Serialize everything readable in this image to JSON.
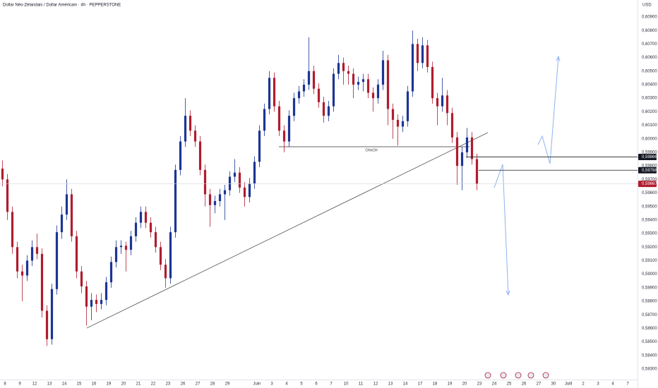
{
  "header": {
    "title": "Dollar Néo-Zélandais / Dollar Américain · 4h · PEPPERSTONE",
    "currency": "USD",
    "annotation": "CHoCH"
  },
  "chart_data": {
    "type": "candlestick",
    "up_color": "#1c3594",
    "down_color": "#b01c2e",
    "grid": false,
    "ylim": [
      0.583,
      0.609
    ],
    "yticks": [
      {
        "value": 0.609,
        "label": "0,60900"
      },
      {
        "value": 0.608,
        "label": "0,60800"
      },
      {
        "value": 0.607,
        "label": "0,60700"
      },
      {
        "value": 0.606,
        "label": "0,60600"
      },
      {
        "value": 0.605,
        "label": "0,60500"
      },
      {
        "value": 0.604,
        "label": "0,60400"
      },
      {
        "value": 0.603,
        "label": "0,60300"
      },
      {
        "value": 0.602,
        "label": "0,60200"
      },
      {
        "value": 0.601,
        "label": "0,60100"
      },
      {
        "value": 0.6,
        "label": "0,60000"
      },
      {
        "value": 0.599,
        "label": "0,59900"
      },
      {
        "value": 0.598,
        "label": "0,59800"
      },
      {
        "value": 0.597,
        "label": "0,59700"
      },
      {
        "value": 0.596,
        "label": "0,59600"
      },
      {
        "value": 0.595,
        "label": "0,59500"
      },
      {
        "value": 0.594,
        "label": "0,59400"
      },
      {
        "value": 0.593,
        "label": "0,59300"
      },
      {
        "value": 0.592,
        "label": "0,59200"
      },
      {
        "value": 0.591,
        "label": "0,59100"
      },
      {
        "value": 0.59,
        "label": "0,59000"
      },
      {
        "value": 0.589,
        "label": "0,58900"
      },
      {
        "value": 0.588,
        "label": "0,58800"
      },
      {
        "value": 0.587,
        "label": "0,58700"
      },
      {
        "value": 0.586,
        "label": "0,58600"
      },
      {
        "value": 0.585,
        "label": "0,58500"
      },
      {
        "value": 0.584,
        "label": "0,58400"
      },
      {
        "value": 0.583,
        "label": "0,58300"
      }
    ],
    "price_labels": [
      {
        "value": 0.59866,
        "label": "0,59866",
        "color": "#131722"
      },
      {
        "value": 0.59768,
        "label": "0,59768",
        "color": "#131722"
      },
      {
        "value": 0.59667,
        "label": "0,59667",
        "color": "#b01c2e"
      }
    ],
    "x_labels": [
      "8",
      "9",
      "12",
      "13",
      "14",
      "15",
      "16",
      "19",
      "20",
      "21",
      "22",
      "23",
      "26",
      "27",
      "28",
      "29",
      null,
      "Juin",
      "3",
      "4",
      "5",
      "6",
      "7",
      "10",
      "11",
      "12",
      "13",
      "14",
      "17",
      "18",
      "19",
      "20",
      "23",
      "24",
      "25",
      "26",
      "27",
      "30",
      "Juill",
      "2",
      "3",
      "4",
      "7"
    ],
    "ohlc": [
      [
        0.5978,
        0.5984,
        0.5965,
        0.597
      ],
      [
        0.597,
        0.5974,
        0.594,
        0.5946
      ],
      [
        0.5946,
        0.595,
        0.5915,
        0.592
      ],
      [
        0.592,
        0.5924,
        0.5897,
        0.5902
      ],
      [
        0.5902,
        0.5907,
        0.588,
        0.5899
      ],
      [
        0.5899,
        0.5914,
        0.5895,
        0.591
      ],
      [
        0.591,
        0.5925,
        0.5906,
        0.592
      ],
      [
        0.592,
        0.593,
        0.5911,
        0.5915
      ],
      [
        0.5915,
        0.5919,
        0.5868,
        0.5873
      ],
      [
        0.5873,
        0.5877,
        0.5847,
        0.5852
      ],
      [
        0.5852,
        0.5893,
        0.5848,
        0.5889
      ],
      [
        0.5889,
        0.5936,
        0.5885,
        0.5931
      ],
      [
        0.5931,
        0.595,
        0.5926,
        0.5944
      ],
      [
        0.5944,
        0.597,
        0.594,
        0.5959
      ],
      [
        0.5959,
        0.5963,
        0.5924,
        0.5928
      ],
      [
        0.5928,
        0.5932,
        0.5897,
        0.5902
      ],
      [
        0.5902,
        0.5906,
        0.5886,
        0.5891
      ],
      [
        0.5891,
        0.5895,
        0.5862,
        0.5876
      ],
      [
        0.5876,
        0.5886,
        0.5866,
        0.5881
      ],
      [
        0.5881,
        0.5885,
        0.5872,
        0.5878
      ],
      [
        0.5878,
        0.5886,
        0.5874,
        0.5881
      ],
      [
        0.5881,
        0.5898,
        0.5877,
        0.5894
      ],
      [
        0.5894,
        0.5913,
        0.589,
        0.5909
      ],
      [
        0.5909,
        0.5925,
        0.5905,
        0.592
      ],
      [
        0.592,
        0.5925,
        0.5915,
        0.5921
      ],
      [
        0.5921,
        0.5924,
        0.5902,
        0.5918
      ],
      [
        0.5918,
        0.5932,
        0.5914,
        0.5928
      ],
      [
        0.5928,
        0.5942,
        0.5924,
        0.5938
      ],
      [
        0.5938,
        0.595,
        0.5934,
        0.5946
      ],
      [
        0.5946,
        0.595,
        0.5934,
        0.5938
      ],
      [
        0.5938,
        0.5942,
        0.5927,
        0.5931
      ],
      [
        0.5931,
        0.5935,
        0.5916,
        0.592
      ],
      [
        0.592,
        0.5924,
        0.5903,
        0.5907
      ],
      [
        0.5907,
        0.5911,
        0.589,
        0.5897
      ],
      [
        0.5897,
        0.5935,
        0.5893,
        0.5931
      ],
      [
        0.5931,
        0.5981,
        0.5927,
        0.5977
      ],
      [
        0.5977,
        0.6002,
        0.5973,
        0.5998
      ],
      [
        0.5998,
        0.603,
        0.5994,
        0.6017
      ],
      [
        0.6017,
        0.6021,
        0.6002,
        0.6006
      ],
      [
        0.6006,
        0.601,
        0.5994,
        0.5998
      ],
      [
        0.5998,
        0.6002,
        0.5973,
        0.5977
      ],
      [
        0.5977,
        0.5981,
        0.595,
        0.5959
      ],
      [
        0.5959,
        0.5963,
        0.5935,
        0.5951
      ],
      [
        0.5951,
        0.5958,
        0.5945,
        0.5954
      ],
      [
        0.5954,
        0.5963,
        0.595,
        0.5959
      ],
      [
        0.5959,
        0.5966,
        0.594,
        0.5962
      ],
      [
        0.5962,
        0.5976,
        0.5958,
        0.5972
      ],
      [
        0.5972,
        0.5985,
        0.5968,
        0.5975
      ],
      [
        0.5975,
        0.5979,
        0.596,
        0.5964
      ],
      [
        0.5964,
        0.5968,
        0.595,
        0.5957
      ],
      [
        0.5957,
        0.5971,
        0.5953,
        0.5967
      ],
      [
        0.5967,
        0.5987,
        0.5963,
        0.5983
      ],
      [
        0.5983,
        0.601,
        0.5979,
        0.6006
      ],
      [
        0.6006,
        0.6026,
        0.6002,
        0.6022
      ],
      [
        0.6022,
        0.605,
        0.6018,
        0.6045
      ],
      [
        0.6045,
        0.6049,
        0.602,
        0.6024
      ],
      [
        0.6024,
        0.6028,
        0.6002,
        0.6006
      ],
      [
        0.6006,
        0.601,
        0.599,
        0.5998
      ],
      [
        0.5998,
        0.6021,
        0.5994,
        0.6017
      ],
      [
        0.6017,
        0.6034,
        0.6013,
        0.603
      ],
      [
        0.603,
        0.6039,
        0.6026,
        0.6035
      ],
      [
        0.6035,
        0.6044,
        0.6031,
        0.604
      ],
      [
        0.604,
        0.6075,
        0.6036,
        0.605
      ],
      [
        0.605,
        0.6054,
        0.6033,
        0.6037
      ],
      [
        0.6037,
        0.6041,
        0.6023,
        0.6027
      ],
      [
        0.6027,
        0.6031,
        0.6012,
        0.6017
      ],
      [
        0.6017,
        0.6028,
        0.6013,
        0.6024
      ],
      [
        0.6024,
        0.6052,
        0.602,
        0.6048
      ],
      [
        0.6048,
        0.6062,
        0.6044,
        0.6056
      ],
      [
        0.6056,
        0.606,
        0.604,
        0.605
      ],
      [
        0.605,
        0.6054,
        0.604,
        0.6048
      ],
      [
        0.6048,
        0.6052,
        0.603,
        0.604
      ],
      [
        0.604,
        0.6046,
        0.6036,
        0.6042
      ],
      [
        0.6042,
        0.6048,
        0.6035,
        0.6044
      ],
      [
        0.6044,
        0.6048,
        0.603,
        0.6034
      ],
      [
        0.6034,
        0.6038,
        0.602,
        0.603
      ],
      [
        0.603,
        0.6044,
        0.6026,
        0.604
      ],
      [
        0.604,
        0.6065,
        0.6036,
        0.6058
      ],
      [
        0.6058,
        0.6062,
        0.601,
        0.6022
      ],
      [
        0.6022,
        0.6026,
        0.6,
        0.6014
      ],
      [
        0.6014,
        0.6018,
        0.5995,
        0.6009
      ],
      [
        0.6009,
        0.6017,
        0.6005,
        0.6013
      ],
      [
        0.6013,
        0.6039,
        0.6009,
        0.6035
      ],
      [
        0.6035,
        0.608,
        0.6031,
        0.607
      ],
      [
        0.607,
        0.6074,
        0.605,
        0.6056
      ],
      [
        0.6056,
        0.6075,
        0.6052,
        0.6069
      ],
      [
        0.6069,
        0.6073,
        0.6049,
        0.6053
      ],
      [
        0.6053,
        0.6057,
        0.6026,
        0.603
      ],
      [
        0.603,
        0.6034,
        0.601,
        0.6024
      ],
      [
        0.6024,
        0.6045,
        0.602,
        0.6032
      ],
      [
        0.6032,
        0.6036,
        0.601,
        0.6019
      ],
      [
        0.6019,
        0.6023,
        0.5997,
        0.6001
      ],
      [
        0.6001,
        0.6005,
        0.5966,
        0.598
      ],
      [
        0.598,
        0.5994,
        0.5962,
        0.599
      ],
      [
        0.599,
        0.6008,
        0.5986,
        0.6001
      ],
      [
        0.6001,
        0.6005,
        0.5981,
        0.5985
      ],
      [
        0.5985,
        0.5989,
        0.5962,
        0.59667
      ]
    ]
  }
}
